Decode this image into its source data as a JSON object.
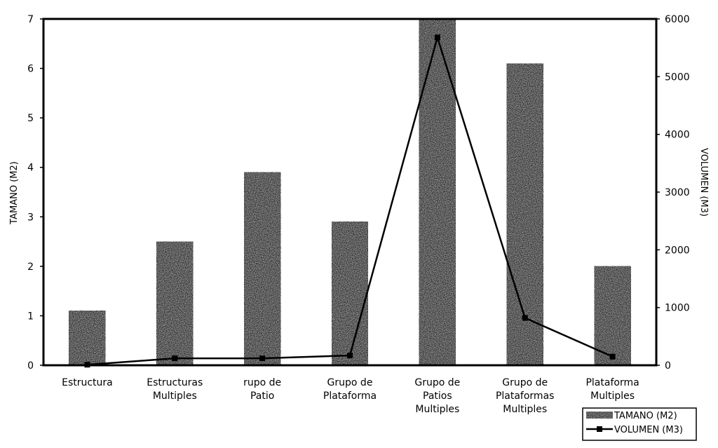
{
  "chart_data": {
    "type": "bar",
    "categories": [
      [
        "Estructura"
      ],
      [
        "Estructuras",
        "Multiples"
      ],
      [
        "rupo de",
        "Patio"
      ],
      [
        "Grupo de",
        "Plataforma"
      ],
      [
        "Grupo de",
        "Patios",
        "Multiples"
      ],
      [
        "Grupo de",
        "Plataformas",
        "Multiples"
      ],
      [
        "Plataforma",
        "Multiples"
      ]
    ],
    "series": [
      {
        "name": "TAMANO (M2)",
        "type": "bar",
        "axis": "left",
        "values": [
          1.1,
          2.5,
          3.9,
          2.9,
          7.0,
          6.1,
          2.0
        ]
      },
      {
        "name": "VOLUMEN (M3)",
        "type": "line",
        "axis": "right",
        "values": [
          10,
          120,
          120,
          170,
          5680,
          820,
          150
        ]
      }
    ],
    "ylabel": "TAMANO (M2)",
    "y2label": "VOLUMEN (M3)",
    "ylim": [
      0,
      7
    ],
    "y2lim": [
      0,
      6000
    ],
    "yticks": [
      "0",
      "1",
      "2",
      "3",
      "4",
      "5",
      "6",
      "7"
    ],
    "y2ticks": [
      "0",
      "1000",
      "2000",
      "3000",
      "4000",
      "5000",
      "6000"
    ],
    "grid": false,
    "legend_position": "bottom-right",
    "colors": {
      "bar": "#2a2a2a",
      "line": "#000000",
      "frame": "#000000"
    }
  }
}
